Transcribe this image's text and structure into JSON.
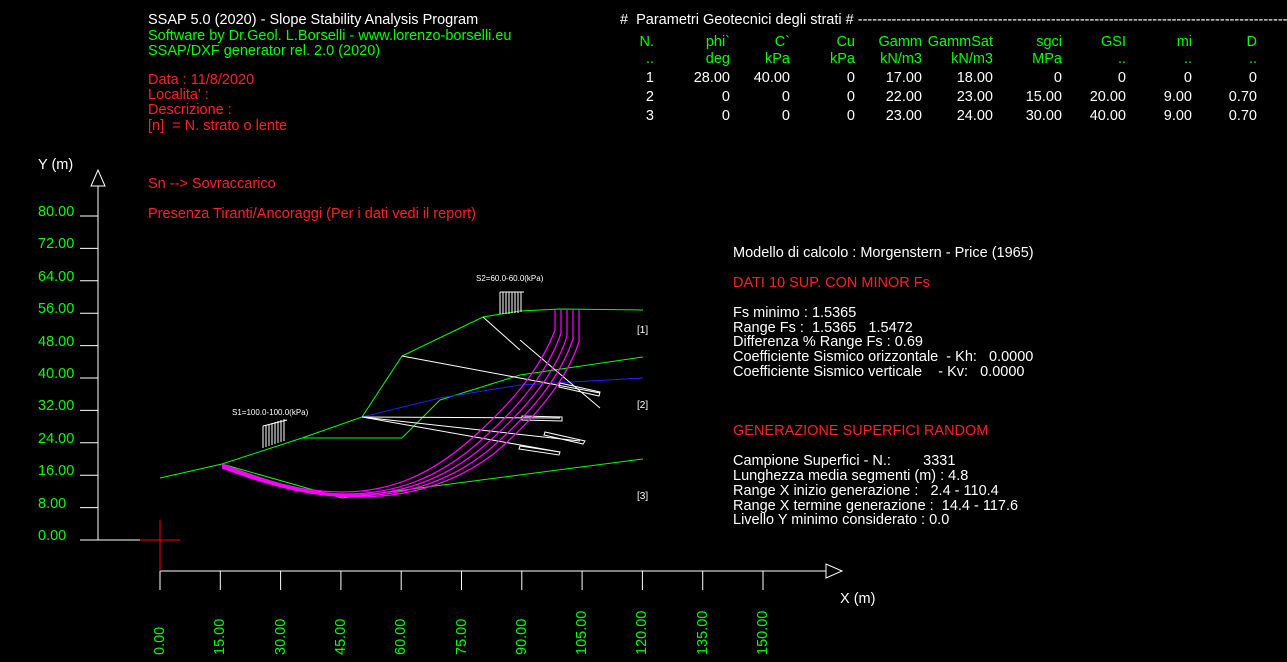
{
  "header": {
    "title": "SSAP 5.0 (2020) - Slope Stability Analysis Program",
    "author": "Software by Dr.Geol. L.Borselli - www.lorenzo-borselli.eu",
    "generator": "SSAP/DXF generator rel. 2.0 (2020)",
    "data": "Data : 11/8/2020",
    "localita": "Localita' :",
    "descrizione": "Descrizione :",
    "legend_strato": "[n]  = N. strato o lente"
  },
  "params_table": {
    "title": "#  Parametri Geotecnici degli strati # -------------------------------------------------------------------------------------------------------------------------------",
    "headers": [
      "N.",
      "phi`",
      "C`",
      "Cu",
      "Gamm",
      "GammSat",
      "sgci",
      "GSI",
      "mi",
      "D"
    ],
    "units": [
      "..",
      "deg",
      "kPa",
      "kPa",
      "kN/m3",
      "kN/m3",
      "MPa",
      "..",
      "..",
      ".."
    ],
    "rows": [
      [
        "1",
        "28.00",
        "40.00",
        "0",
        "17.00",
        "18.00",
        "0",
        "0",
        "0",
        "0"
      ],
      [
        "2",
        "0",
        "0",
        "0",
        "22.00",
        "23.00",
        "15.00",
        "20.00",
        "9.00",
        "0.70"
      ],
      [
        "3",
        "0",
        "0",
        "0",
        "23.00",
        "24.00",
        "30.00",
        "40.00",
        "9.00",
        "0.70"
      ]
    ]
  },
  "plot": {
    "y_axis_label": "Y (m)",
    "x_axis_label": "X (m)",
    "y_ticks": [
      "80.00",
      "72.00",
      "64.00",
      "56.00",
      "48.00",
      "40.00",
      "32.00",
      "24.00",
      "16.00",
      "8.00",
      "0.00"
    ],
    "x_ticks": [
      "0.00",
      "15.00",
      "30.00",
      "45.00",
      "60.00",
      "75.00",
      "90.00",
      "105.00",
      "120.00",
      "135.00",
      "150.00"
    ],
    "notes": {
      "sovraccarico": "Sn --> Sovraccarico",
      "tiranti": "Presenza Tiranti/Ancoraggi (Per i dati vedi il report)"
    },
    "loads": {
      "s1": "S1=100.0-100.0(kPa)",
      "s2": "S2=60.0-60.0(kPa)"
    },
    "layer_tags": [
      "[1]",
      "[2]",
      "[3]"
    ]
  },
  "results": {
    "modello": "Modello di calcolo : Morgenstern - Price (1965)",
    "dati_title": "DATI 10 SUP. CON MINOR Fs",
    "fs_minimo": "Fs minimo : 1.5365",
    "range_fs": "Range Fs :  1.5365   1.5472",
    "differenza": "Differenza % Range Fs : 0.69",
    "kh": "Coefficiente Sismico orizzontale  - Kh:   0.0000",
    "kv": "Coefficiente Sismico verticale    - Kv:   0.0000",
    "gen_title": "GENERAZIONE SUPERFICI RANDOM",
    "campione": "Campione Superfici - N.:        3331",
    "lunghezza": "Lunghezza media segmenti (m) : 4.8",
    "range_x_inizio": "Range X inizio generazione :   2.4 - 110.4",
    "range_x_termine": "Range X termine generazione :  14.4 - 117.6",
    "livello_y": "Livello Y minimo considerato : 0.0"
  },
  "colors": {
    "background": "#000000",
    "axis": "#ffffff",
    "tick_labels": "#00ff00",
    "notes": "#ff2020",
    "slope_profile": "#00ff00",
    "layer_boundary": "#0000ff",
    "slip_surfaces": "#ff00ff",
    "anchors": "#ffffff",
    "origin_marker": "#ff0000"
  }
}
